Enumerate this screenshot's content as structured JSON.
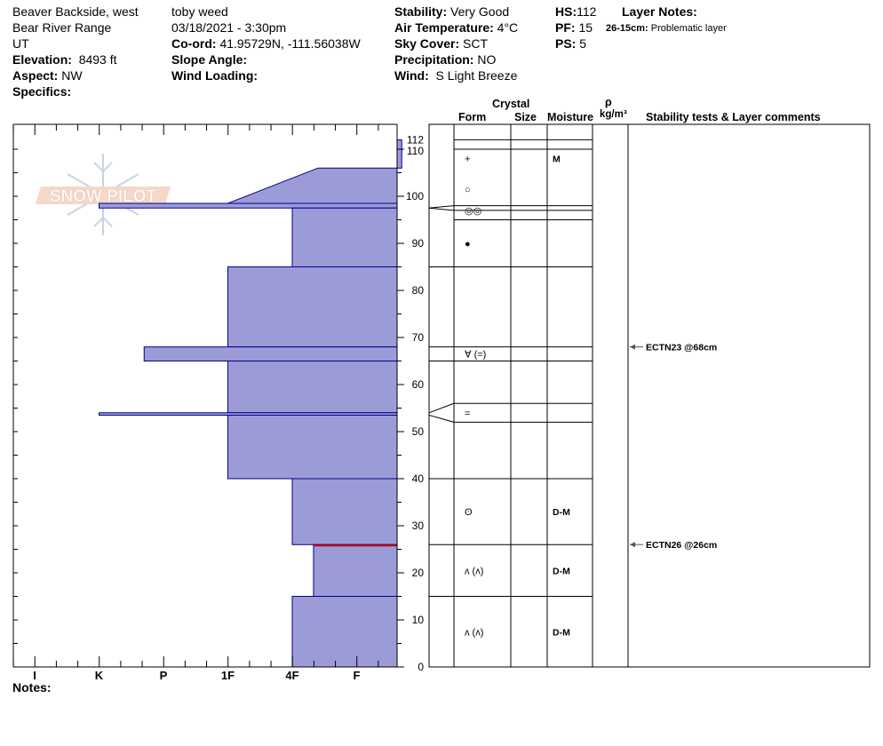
{
  "header": {
    "location": "Beaver Backside, west",
    "range": "Bear River Range",
    "state": "UT",
    "elevation_label": "Elevation:",
    "elevation_value": "8493 ft",
    "aspect_label": "Aspect:",
    "aspect_value": "NW",
    "specifics_label": "Specifics:",
    "observer": "toby weed",
    "datetime": "03/18/2021 - 3:30pm",
    "coord_label": "Co-ord:",
    "coord_value": "41.95729N, -111.56038W",
    "slope_label": "Slope Angle:",
    "wind_loading_label": "Wind Loading:",
    "stability_label": "Stability:",
    "stability_value": "Very Good",
    "air_temp_label": "Air Temperature:",
    "air_temp_value": "4°C",
    "sky_label": "Sky Cover:",
    "sky_value": "SCT",
    "precip_label": "Precipitation:",
    "precip_value": "NO",
    "wind_label": "Wind:",
    "wind_value": "S Light Breeze",
    "hs_label": "HS:",
    "hs_value": "112",
    "pf_label": "PF:",
    "pf_value": "15",
    "ps_label": "PS:",
    "ps_value": "5",
    "layer_notes_label": "Layer Notes:",
    "layer_note_range": "26-15cm:",
    "layer_note_text": "Problematic layer"
  },
  "columns": {
    "crystal": "Crystal",
    "form": "Form",
    "size": "Size",
    "moisture": "Moisture",
    "rho": "ρ",
    "density_unit": "kg/m³",
    "stability": "Stability tests & Layer comments"
  },
  "logo_text": "SNOW PILOT",
  "notes_label": "Notes:",
  "colors": {
    "layer_fill": "#9b9bd8",
    "layer_stroke": "#00008b",
    "problem_line": "#cc0000",
    "grid": "#000000"
  },
  "chart_data": {
    "type": "snow-profile",
    "hardness_scale": [
      "I",
      "K",
      "P",
      "1F",
      "4F",
      "F"
    ],
    "ylim": [
      0,
      112
    ],
    "yticks": [
      0,
      10,
      20,
      30,
      40,
      50,
      60,
      70,
      80,
      90,
      100,
      110,
      112
    ],
    "layers": [
      {
        "top": 112,
        "bottom": 106,
        "hardness_top": 5.7,
        "hardness_bottom": 5.7
      },
      {
        "top": 106,
        "bottom": 98.5,
        "hardness_top": 4.4,
        "hardness_bottom": 3.0
      },
      {
        "top": 98.5,
        "bottom": 97.5,
        "hardness_top": 1.0,
        "hardness_bottom": 1.0
      },
      {
        "top": 97.5,
        "bottom": 85,
        "hardness_top": 4.0,
        "hardness_bottom": 4.0
      },
      {
        "top": 85,
        "bottom": 68,
        "hardness_top": 3.0,
        "hardness_bottom": 3.0
      },
      {
        "top": 68,
        "bottom": 65,
        "hardness_top": 1.7,
        "hardness_bottom": 1.7
      },
      {
        "top": 65,
        "bottom": 54,
        "hardness_top": 3.0,
        "hardness_bottom": 3.0
      },
      {
        "top": 54,
        "bottom": 53.5,
        "hardness_top": 1.0,
        "hardness_bottom": 1.0
      },
      {
        "top": 53.5,
        "bottom": 40,
        "hardness_top": 3.0,
        "hardness_bottom": 3.0
      },
      {
        "top": 40,
        "bottom": 26,
        "hardness_top": 4.0,
        "hardness_bottom": 4.0
      },
      {
        "top": 26,
        "bottom": 15,
        "hardness_top": 4.33,
        "hardness_bottom": 4.33
      },
      {
        "top": 15,
        "bottom": 0,
        "hardness_top": 4.0,
        "hardness_bottom": 4.0
      }
    ],
    "problem_layer_depth": 25.8,
    "crystal_layers": [
      {
        "top": 112,
        "bottom": 110,
        "form": "",
        "moisture": ""
      },
      {
        "top": 110,
        "bottom": 98,
        "form": "+",
        "moisture": "M",
        "form_y": 108
      },
      {
        "top": 98,
        "bottom": 97,
        "form": "○",
        "moisture": "",
        "form_y": 101.5
      },
      {
        "top": 97,
        "bottom": 95,
        "form": "◎◎",
        "moisture": "",
        "form_y": 97
      },
      {
        "top": 95,
        "bottom": 85,
        "form": "●",
        "moisture": "",
        "form_y": 90
      },
      {
        "top": 85,
        "bottom": 68,
        "form": "",
        "moisture": ""
      },
      {
        "top": 68,
        "bottom": 65,
        "form": "∀ (=)",
        "moisture": "",
        "form_y": 66.5
      },
      {
        "top": 65,
        "bottom": 56,
        "form": "",
        "moisture": ""
      },
      {
        "top": 56,
        "bottom": 52,
        "form": "=",
        "moisture": "",
        "form_y": 54
      },
      {
        "top": 52,
        "bottom": 40,
        "form": "",
        "moisture": ""
      },
      {
        "top": 40,
        "bottom": 26,
        "form": "ʘ",
        "moisture": "D-M",
        "form_y": 33
      },
      {
        "top": 26,
        "bottom": 15,
        "form": "ʌ (ʌ)",
        "moisture": "D-M",
        "form_y": 20.5
      },
      {
        "top": 15,
        "bottom": 0,
        "form": "ʌ (ʌ)",
        "moisture": "D-M",
        "form_y": 7.5
      }
    ],
    "stability_tests": [
      {
        "depth": 68,
        "label": "ECTN23 @68cm"
      },
      {
        "depth": 26,
        "label": "ECTN26 @26cm"
      }
    ]
  }
}
